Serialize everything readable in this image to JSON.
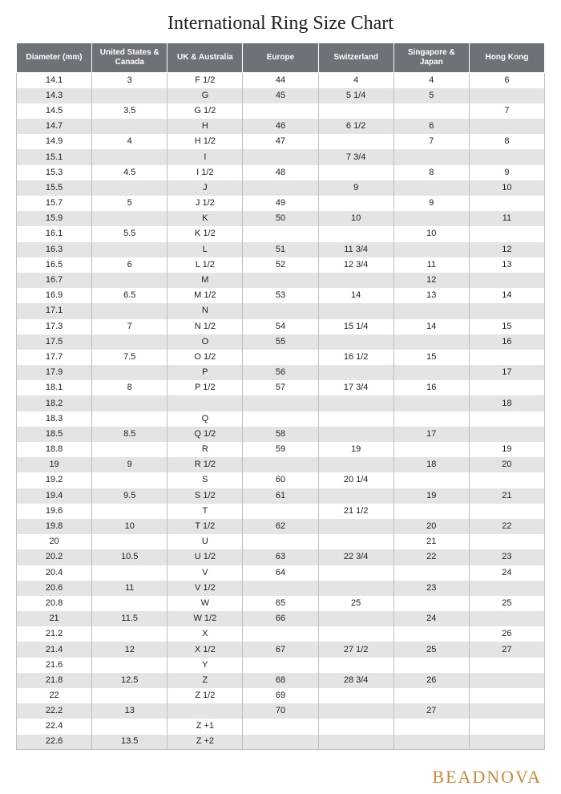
{
  "title": "International Ring Size Chart",
  "brand": "BEADNOVA",
  "table": {
    "type": "table",
    "header_bg": "#6d7278",
    "header_fg": "#ffffff",
    "row_odd_bg": "#ffffff",
    "row_even_bg": "#e4e4e4",
    "border_color": "#bfbfbf",
    "header_fontsize": 10,
    "cell_fontsize": 11,
    "columns": [
      "Diameter (mm)",
      "United States & Canada",
      "UK & Australia",
      "Europe",
      "Switzerland",
      "Singapore & Japan",
      "Hong Kong"
    ],
    "rows": [
      [
        "14.1",
        "3",
        "F 1/2",
        "44",
        "4",
        "4",
        "6"
      ],
      [
        "14.3",
        "",
        "G",
        "45",
        "5 1/4",
        "5",
        ""
      ],
      [
        "14.5",
        "3.5",
        "G 1/2",
        "",
        "",
        "",
        "7"
      ],
      [
        "14.7",
        "",
        "H",
        "46",
        "6 1/2",
        "6",
        ""
      ],
      [
        "14.9",
        "4",
        "H 1/2",
        "47",
        "",
        "7",
        "8"
      ],
      [
        "15.1",
        "",
        "I",
        "",
        "7 3/4",
        "",
        ""
      ],
      [
        "15.3",
        "4.5",
        "I 1/2",
        "48",
        "",
        "8",
        "9"
      ],
      [
        "15.5",
        "",
        "J",
        "",
        "9",
        "",
        "10"
      ],
      [
        "15.7",
        "5",
        "J 1/2",
        "49",
        "",
        "9",
        ""
      ],
      [
        "15.9",
        "",
        "K",
        "50",
        "10",
        "",
        "11"
      ],
      [
        "16.1",
        "5.5",
        "K 1/2",
        "",
        "",
        "10",
        ""
      ],
      [
        "16.3",
        "",
        "L",
        "51",
        "11 3/4",
        "",
        "12"
      ],
      [
        "16.5",
        "6",
        "L 1/2",
        "52",
        "12 3/4",
        "11",
        "13"
      ],
      [
        "16.7",
        "",
        "M",
        "",
        "",
        "12",
        ""
      ],
      [
        "16.9",
        "6.5",
        "M 1/2",
        "53",
        "14",
        "13",
        "14"
      ],
      [
        "17.1",
        "",
        "N",
        "",
        "",
        "",
        ""
      ],
      [
        "17.3",
        "7",
        "N 1/2",
        "54",
        "15 1/4",
        "14",
        "15"
      ],
      [
        "17.5",
        "",
        "O",
        "55",
        "",
        "",
        "16"
      ],
      [
        "17.7",
        "7.5",
        "O 1/2",
        "",
        "16 1/2",
        "15",
        ""
      ],
      [
        "17.9",
        "",
        "P",
        "56",
        "",
        "",
        "17"
      ],
      [
        "18.1",
        "8",
        "P 1/2",
        "57",
        "17 3/4",
        "16",
        ""
      ],
      [
        "18.2",
        "",
        "",
        "",
        "",
        "",
        "18"
      ],
      [
        "18.3",
        "",
        "Q",
        "",
        "",
        "",
        ""
      ],
      [
        "18.5",
        "8.5",
        "Q 1/2",
        "58",
        "",
        "17",
        ""
      ],
      [
        "18.8",
        "",
        "R",
        "59",
        "19",
        "",
        "19"
      ],
      [
        "19",
        "9",
        "R 1/2",
        "",
        "",
        "18",
        "20"
      ],
      [
        "19.2",
        "",
        "S",
        "60",
        "20 1/4",
        "",
        ""
      ],
      [
        "19.4",
        "9.5",
        "S 1/2",
        "61",
        "",
        "19",
        "21"
      ],
      [
        "19.6",
        "",
        "T",
        "",
        "21 1/2",
        "",
        ""
      ],
      [
        "19.8",
        "10",
        "T 1/2",
        "62",
        "",
        "20",
        "22"
      ],
      [
        "20",
        "",
        "U",
        "",
        "",
        "21",
        ""
      ],
      [
        "20.2",
        "10.5",
        "U 1/2",
        "63",
        "22 3/4",
        "22",
        "23"
      ],
      [
        "20.4",
        "",
        "V",
        "64",
        "",
        "",
        "24"
      ],
      [
        "20.6",
        "11",
        "V 1/2",
        "",
        "",
        "23",
        ""
      ],
      [
        "20.8",
        "",
        "W",
        "65",
        "25",
        "",
        "25"
      ],
      [
        "21",
        "11.5",
        "W 1/2",
        "66",
        "",
        "24",
        ""
      ],
      [
        "21.2",
        "",
        "X",
        "",
        "",
        "",
        "26"
      ],
      [
        "21.4",
        "12",
        "X 1/2",
        "67",
        "27 1/2",
        "25",
        "27"
      ],
      [
        "21.6",
        "",
        "Y",
        "",
        "",
        "",
        ""
      ],
      [
        "21.8",
        "12.5",
        "Z",
        "68",
        "28 3/4",
        "26",
        ""
      ],
      [
        "22",
        "",
        "Z 1/2",
        "69",
        "",
        "",
        ""
      ],
      [
        "22.2",
        "13",
        "",
        "70",
        "",
        "27",
        ""
      ],
      [
        "22.4",
        "",
        "Z +1",
        "",
        "",
        "",
        ""
      ],
      [
        "22.6",
        "13.5",
        "Z +2",
        "",
        "",
        "",
        ""
      ]
    ]
  }
}
